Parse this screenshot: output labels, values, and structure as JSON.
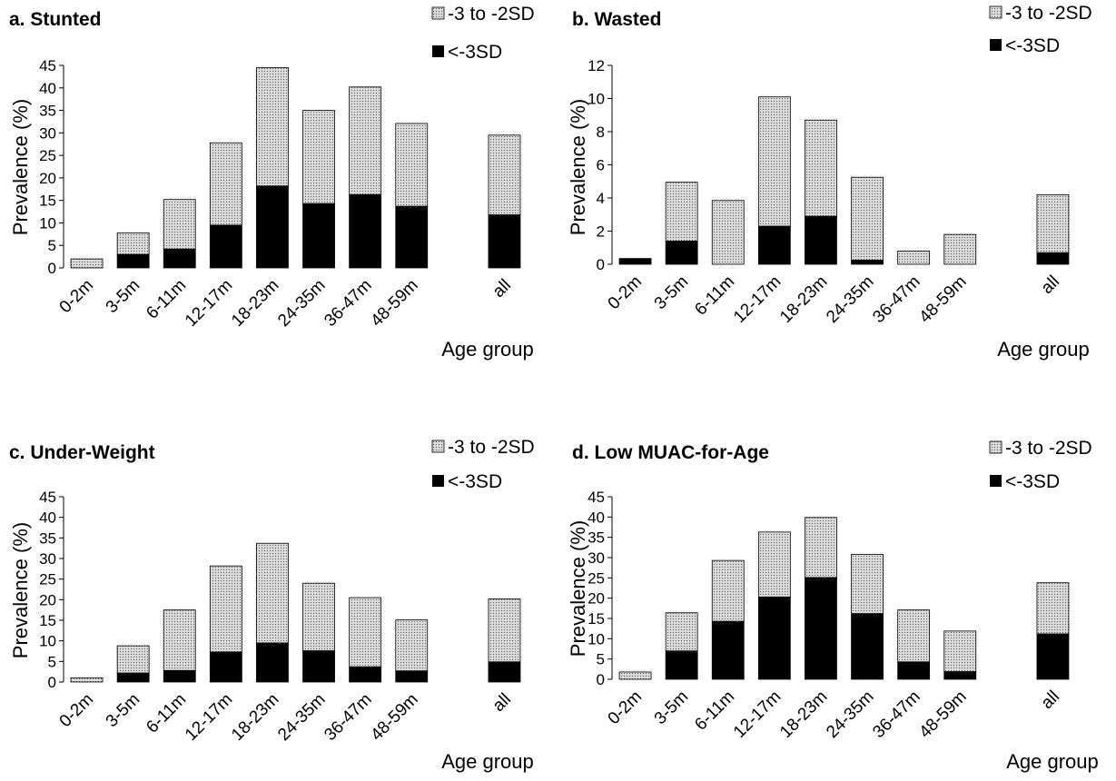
{
  "legend": {
    "moderate": "-3 to -2SD",
    "severe": "<-3SD"
  },
  "colors": {
    "severe": "#000000",
    "moderate_fill": "#d9d9d9",
    "moderate_dot": "#555555",
    "border": "#000000"
  },
  "chart_data": [
    {
      "type": "bar",
      "stacked": true,
      "title": "a. Stunted",
      "xlabel": "Age group",
      "ylabel": "Prevalence (%)",
      "ylim": [
        0,
        45
      ],
      "yticks": [
        0,
        5,
        10,
        15,
        20,
        25,
        30,
        35,
        40,
        45
      ],
      "categories": [
        "0-2m",
        "3-5m",
        "6-11m",
        "12-17m",
        "18-23m",
        "24-35m",
        "36-47m",
        "48-59m",
        "all"
      ],
      "series": [
        {
          "name": "<-3SD",
          "values": [
            0,
            3,
            4.2,
            9.5,
            18.2,
            14.3,
            16.3,
            13.7,
            11.8
          ]
        },
        {
          "name": "-3 to -2SD",
          "values": [
            2,
            4.8,
            11,
            18.3,
            26.3,
            20.7,
            23.9,
            18.4,
            17.7
          ]
        }
      ]
    },
    {
      "type": "bar",
      "stacked": true,
      "title": "b. Wasted",
      "xlabel": "Age group",
      "ylabel": "Prevalence (%)",
      "ylim": [
        0,
        12
      ],
      "yticks": [
        0,
        2,
        4,
        6,
        8,
        10,
        12
      ],
      "categories": [
        "0-2m",
        "3-5m",
        "6-11m",
        "12-17m",
        "18-23m",
        "24-35m",
        "36-47m",
        "48-59m",
        "all"
      ],
      "series": [
        {
          "name": "<-3SD",
          "values": [
            0.35,
            1.4,
            0,
            2.3,
            2.9,
            0.25,
            0,
            0,
            0.7
          ]
        },
        {
          "name": "-3 to -2SD",
          "values": [
            0,
            3.55,
            3.85,
            7.8,
            5.8,
            5.0,
            0.8,
            1.8,
            3.5
          ]
        }
      ]
    },
    {
      "type": "bar",
      "stacked": true,
      "title": "c. Under-Weight",
      "xlabel": "Age group",
      "ylabel": "Prevalence (%)",
      "ylim": [
        0,
        45
      ],
      "yticks": [
        0,
        5,
        10,
        15,
        20,
        25,
        30,
        35,
        40,
        45
      ],
      "categories": [
        "0-2m",
        "3-5m",
        "6-11m",
        "12-17m",
        "18-23m",
        "24-35m",
        "36-47m",
        "48-59m",
        "all"
      ],
      "series": [
        {
          "name": "<-3SD",
          "values": [
            0,
            2.2,
            2.8,
            7.3,
            9.5,
            7.6,
            3.7,
            2.7,
            4.9
          ]
        },
        {
          "name": "-3 to -2SD",
          "values": [
            1,
            6.6,
            14.7,
            20.9,
            24.2,
            16.4,
            16.8,
            12.4,
            15.3
          ]
        }
      ]
    },
    {
      "type": "bar",
      "stacked": true,
      "title": "d. Low MUAC-for-Age",
      "xlabel": "Age group",
      "ylabel": "Prevalence (%)",
      "ylim": [
        0,
        45
      ],
      "yticks": [
        0,
        5,
        10,
        15,
        20,
        25,
        30,
        35,
        40,
        45
      ],
      "categories": [
        "0-2m",
        "3-5m",
        "6-11m",
        "12-17m",
        "18-23m",
        "24-35m",
        "36-47m",
        "48-59m",
        "all"
      ],
      "series": [
        {
          "name": "<-3SD",
          "values": [
            0,
            7,
            14.3,
            20.3,
            25.1,
            16.2,
            4.3,
            1.9,
            11.2
          ]
        },
        {
          "name": "-3 to -2SD",
          "values": [
            1.8,
            9.4,
            15,
            16,
            14.8,
            14.6,
            12.8,
            10,
            12.6
          ]
        }
      ]
    }
  ]
}
